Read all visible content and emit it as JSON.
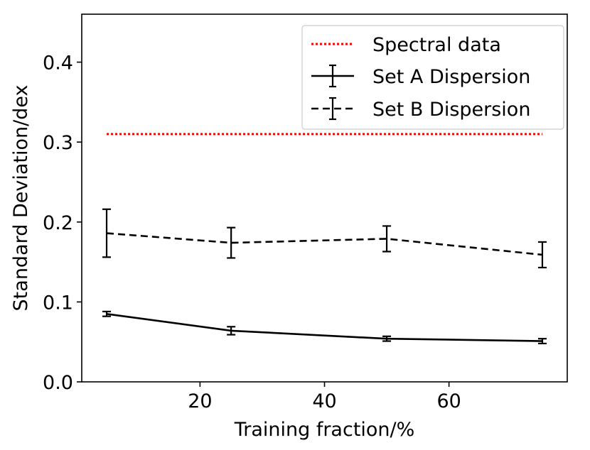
{
  "chart_data": {
    "type": "line",
    "title": "",
    "xlabel": "Training fraction/%",
    "ylabel": "Standard Deviation/dex",
    "xlim": [
      1,
      79
    ],
    "ylim": [
      0.0,
      0.46
    ],
    "x_ticks": [
      20,
      40,
      60
    ],
    "x_tick_labels": [
      "20",
      "40",
      "60"
    ],
    "y_ticks": [
      0.0,
      0.1,
      0.2,
      0.3,
      0.4
    ],
    "y_tick_labels": [
      "0.0",
      "0.1",
      "0.2",
      "0.3",
      "0.4"
    ],
    "grid": false,
    "legend_position": "top-right",
    "series": [
      {
        "name": "Spectral data",
        "style": "dotted",
        "color": "#ff0000",
        "x": [
          5,
          75
        ],
        "values": [
          0.31,
          0.31
        ]
      },
      {
        "name": "Set A Dispersion",
        "style": "solid",
        "color": "#000000",
        "x": [
          5,
          25,
          50,
          75
        ],
        "values": [
          0.085,
          0.064,
          0.054,
          0.051
        ],
        "errors": [
          0.003,
          0.005,
          0.003,
          0.003
        ]
      },
      {
        "name": "Set B Dispersion",
        "style": "dashed",
        "color": "#000000",
        "x": [
          5,
          25,
          50,
          75
        ],
        "values": [
          0.186,
          0.174,
          0.179,
          0.159
        ],
        "errors": [
          0.03,
          0.019,
          0.016,
          0.016
        ]
      }
    ]
  }
}
